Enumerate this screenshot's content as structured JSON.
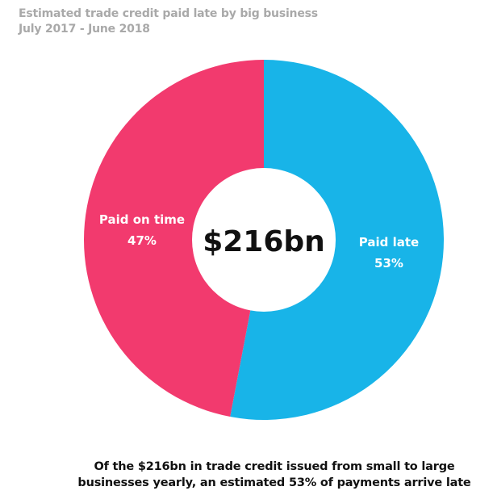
{
  "chart_data": {
    "type": "pie",
    "donut": true,
    "title": "Estimated trade credit paid late by big business",
    "subtitle": "July 2017 - June 2018",
    "center_label": "$216bn",
    "slices": [
      {
        "label": "Paid late",
        "value": 53,
        "value_label": "53%",
        "color": "#18b4e8"
      },
      {
        "label": "Paid on time",
        "value": 47,
        "value_label": "47%",
        "color": "#f23a6e"
      }
    ],
    "start": "top",
    "direction": "clockwise"
  },
  "caption": {
    "line1": "Of the $216bn in trade credit issued from small to large",
    "line2": "businesses yearly, an estimated 53% of payments arrive late"
  }
}
